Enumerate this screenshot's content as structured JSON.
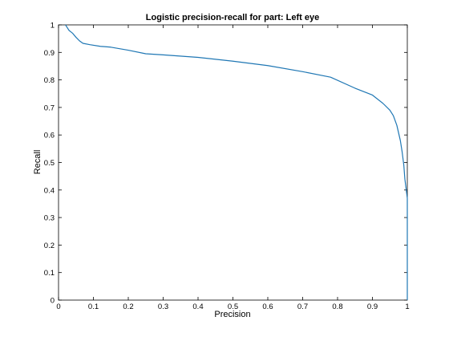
{
  "chart_data": {
    "type": "line",
    "title": "Logistic precision-recall for part: Left eye",
    "xlabel": "Precision",
    "ylabel": "Recall",
    "xlim": [
      0,
      1
    ],
    "ylim": [
      0,
      1
    ],
    "x_ticks": [
      "0",
      "0.1",
      "0.2",
      "0.3",
      "0.4",
      "0.5",
      "0.6",
      "0.7",
      "0.8",
      "0.9",
      "1"
    ],
    "y_ticks": [
      "0",
      "0.1",
      "0.2",
      "0.3",
      "0.4",
      "0.5",
      "0.6",
      "0.7",
      "0.8",
      "0.9",
      "1"
    ],
    "grid": false,
    "series": [
      {
        "color": "#1f77b4",
        "x": [
          0.02,
          0.025,
          0.03,
          0.035,
          0.04,
          0.05,
          0.06,
          0.07,
          0.09,
          0.12,
          0.15,
          0.2,
          0.25,
          0.3,
          0.4,
          0.5,
          0.6,
          0.7,
          0.78,
          0.85,
          0.9,
          0.93,
          0.95,
          0.96,
          0.97,
          0.98,
          0.985,
          0.99,
          0.993,
          0.996,
          1.0,
          1.0
        ],
        "y": [
          1.0,
          0.99,
          0.98,
          0.975,
          0.97,
          0.955,
          0.942,
          0.933,
          0.928,
          0.922,
          0.919,
          0.908,
          0.895,
          0.891,
          0.882,
          0.868,
          0.852,
          0.83,
          0.81,
          0.77,
          0.745,
          0.715,
          0.69,
          0.67,
          0.635,
          0.58,
          0.54,
          0.49,
          0.44,
          0.41,
          0.37,
          0.0
        ]
      }
    ]
  }
}
